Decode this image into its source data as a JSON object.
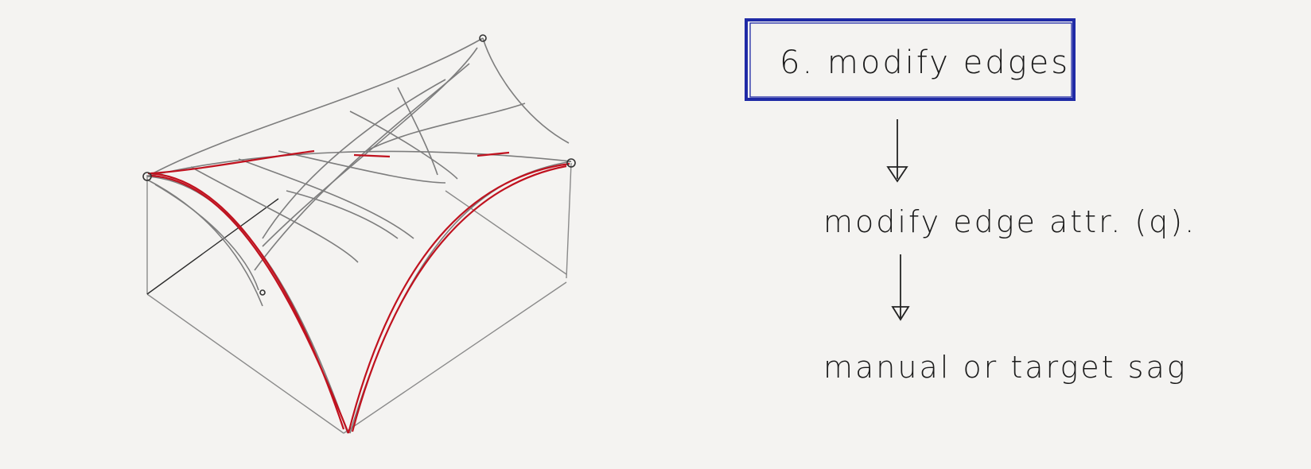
{
  "steps": {
    "title": "6. modify edges",
    "step2": "modify edge attr. (q).",
    "step3": "manual or target sag"
  },
  "colors": {
    "paper": "#f4f3f1",
    "pencil": "#7d7d7d",
    "red_ink": "#c0121f",
    "blue_ink": "#1f2aa6",
    "black_ink": "#1b1b1b"
  }
}
